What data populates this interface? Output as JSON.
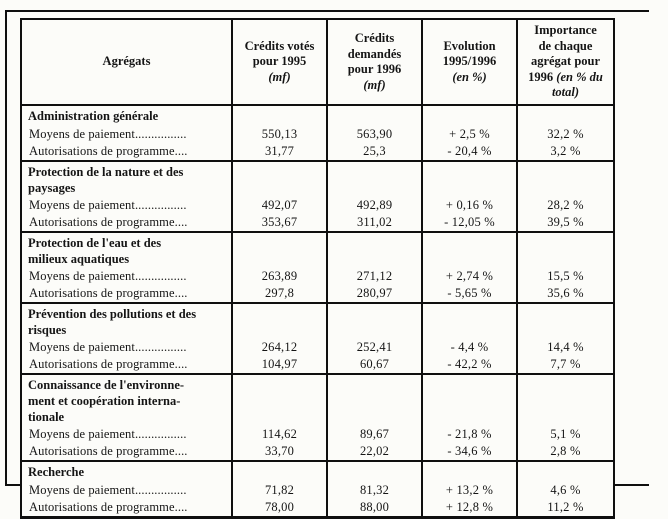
{
  "colors": {
    "paper": "#fcfcf9",
    "ink": "#151515"
  },
  "table": {
    "header": {
      "agregats": "Agrégats",
      "credits_votes_main": "Crédits votés\npour 1995",
      "credits_votes_unit": "(mf)",
      "credits_demandes_main": "Crédits\ndemandés\npour 1996",
      "credits_demandes_unit": "(mf)",
      "evolution_main": "Evolution\n1995/1996",
      "evolution_unit": "(en %)",
      "importance_main": "Importance\nde chaque\nagrégat pour\n1996",
      "importance_unit": "(en % du\ntotal)"
    },
    "sections": [
      {
        "title": "Administration générale",
        "rows": [
          {
            "label": "Moyens de paiement................",
            "v1995": "550,13",
            "v1996": "563,90",
            "evol": "+ 2,5 %",
            "imp": "32,2 %"
          },
          {
            "label": "Autorisations de programme....",
            "v1995": "31,77",
            "v1996": "25,3",
            "evol": "- 20,4 %",
            "imp": "3,2 %"
          }
        ]
      },
      {
        "title": "Protection de la nature et des\npaysages",
        "rows": [
          {
            "label": "Moyens de paiement................",
            "v1995": "492,07",
            "v1996": "492,89",
            "evol": "+ 0,16 %",
            "imp": "28,2 %"
          },
          {
            "label": "Autorisations de programme....",
            "v1995": "353,67",
            "v1996": "311,02",
            "evol": "- 12,05 %",
            "imp": "39,5 %"
          }
        ]
      },
      {
        "title": "Protection de l'eau et des\nmilieux aquatiques",
        "rows": [
          {
            "label": "Moyens de paiement................",
            "v1995": "263,89",
            "v1996": "271,12",
            "evol": "+ 2,74 %",
            "imp": "15,5 %"
          },
          {
            "label": "Autorisations de programme....",
            "v1995": "297,8",
            "v1996": "280,97",
            "evol": "- 5,65 %",
            "imp": "35,6 %"
          }
        ]
      },
      {
        "title": "Prévention des pollutions et des\nrisques",
        "rows": [
          {
            "label": "Moyens de paiement................",
            "v1995": "264,12",
            "v1996": "252,41",
            "evol": "- 4,4 %",
            "imp": "14,4 %"
          },
          {
            "label": "Autorisations de programme....",
            "v1995": "104,97",
            "v1996": "60,67",
            "evol": "- 42,2 %",
            "imp": "7,7 %"
          }
        ]
      },
      {
        "title": "Connaissance de l'environne-\nment et coopération interna-\ntionale",
        "rows": [
          {
            "label": "Moyens de paiement................",
            "v1995": "114,62",
            "v1996": "89,67",
            "evol": "- 21,8 %",
            "imp": "5,1 %"
          },
          {
            "label": "Autorisations de programme....",
            "v1995": "33,70",
            "v1996": "22,02",
            "evol": "- 34,6 %",
            "imp": "2,8 %"
          }
        ]
      },
      {
        "title": "Recherche",
        "rows": [
          {
            "label": "Moyens de paiement................",
            "v1995": "71,82",
            "v1996": "81,32",
            "evol": "+ 13,2 %",
            "imp": "4,6 %"
          },
          {
            "label": "Autorisations de programme....",
            "v1995": "78,00",
            "v1996": "88,00",
            "evol": "+ 12,8 %",
            "imp": "11,2 %"
          }
        ]
      }
    ]
  }
}
